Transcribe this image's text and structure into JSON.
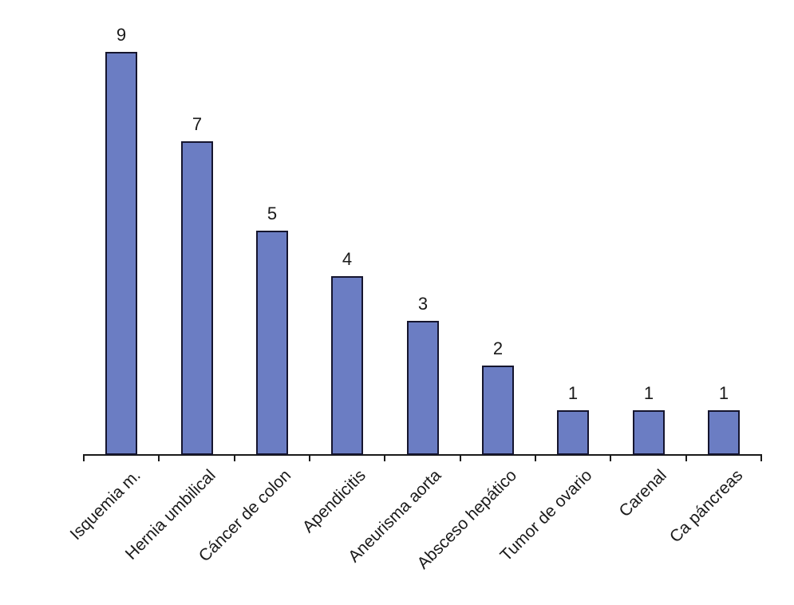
{
  "chart_data": {
    "type": "bar",
    "title": "",
    "xlabel": "",
    "ylabel": "",
    "categories": [
      "Isquemia m.",
      "Hernia umbilical",
      "Cáncer de colon",
      "Apendicitis",
      "Aneurisma aorta",
      "Absceso hepático",
      "Tumor de ovario",
      "Carenal",
      "Ca páncreas"
    ],
    "values": [
      9,
      7,
      5,
      4,
      3,
      2,
      1,
      1,
      1
    ],
    "data_labels": [
      "9",
      "7",
      "5",
      "4",
      "3",
      "2",
      "1",
      "1",
      "1"
    ],
    "ylim": [
      0,
      9
    ],
    "grid": "off",
    "legend": "none",
    "label_rotation_deg": 45,
    "bar_color": "#6B7DC3",
    "bar_border_color": "#15152e",
    "axis_color": "#1a1a1a",
    "text_color": "#1a1a1a",
    "background_color": "#ffffff"
  }
}
